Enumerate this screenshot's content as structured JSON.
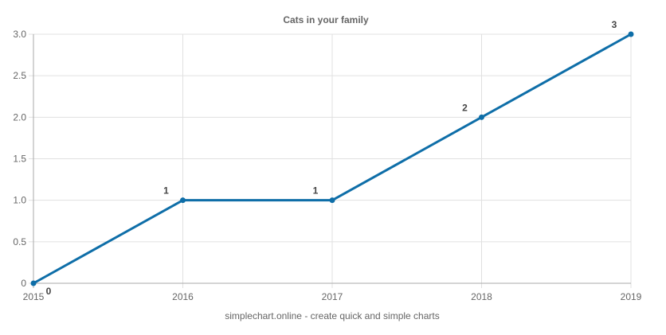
{
  "chart_data": {
    "type": "line",
    "title": "Cats in your family",
    "categories": [
      "2015",
      "2016",
      "2017",
      "2018",
      "2019"
    ],
    "series": [
      {
        "name": "Cats in your family",
        "values": [
          0,
          1,
          1,
          2,
          3
        ],
        "color": "#0e6ea8"
      }
    ],
    "data_labels": [
      "0",
      "1",
      "1",
      "2",
      "3"
    ],
    "xlabel": "",
    "ylabel": "",
    "ylim": [
      0,
      3
    ],
    "yticks": [
      "3.0",
      "2.5",
      "2.0",
      "1.5",
      "1.0",
      "0.5",
      "0"
    ],
    "grid": true,
    "legend": "none"
  },
  "footer": "simplechart.online - create quick and simple charts",
  "colors": {
    "line": "#0e6ea8",
    "grid": "#e0e0e0",
    "axis": "#aaaaaa",
    "text": "#666666"
  }
}
